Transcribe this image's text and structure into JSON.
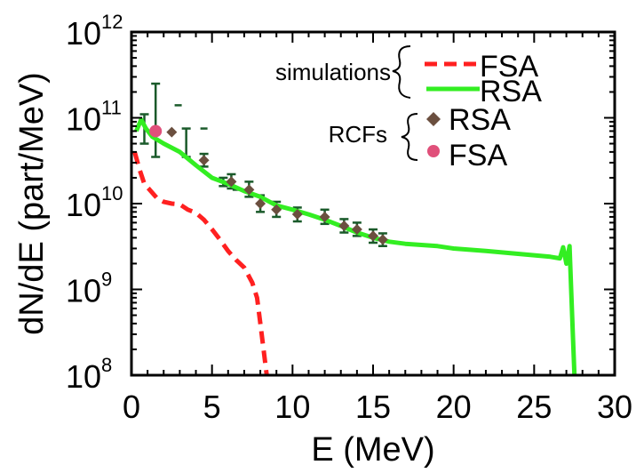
{
  "chart_data": {
    "type": "line",
    "xlabel": "E (MeV)",
    "ylabel": "dN/dE (part/MeV)",
    "xlim": [
      0,
      30
    ],
    "ylim_log10": [
      8,
      12
    ],
    "y_scale": "log",
    "grid": false,
    "x_ticks": [
      "0",
      "5",
      "10",
      "15",
      "20",
      "25",
      "30"
    ],
    "y_ticks": [
      {
        "base": "10",
        "exp": "8"
      },
      {
        "base": "10",
        "exp": "9"
      },
      {
        "base": "10",
        "exp": "10"
      },
      {
        "base": "10",
        "exp": "11"
      },
      {
        "base": "10",
        "exp": "12"
      }
    ],
    "legend": {
      "placement": "top-right",
      "group_simulations": "simulations",
      "group_rcfs": "RCFs",
      "sim_fsa": "FSA",
      "sim_rsa": "RSA",
      "rcf_rsa": "RSA",
      "rcf_fsa": "FSA"
    },
    "colors": {
      "sim_fsa": "#ff2020",
      "sim_rsa": "#33ee22",
      "rcf_rsa": "#6b4f3f",
      "rcf_fsa": "#e0507a",
      "error_bar": "#1a5a2a"
    },
    "series": [
      {
        "id": "sim_fsa",
        "style": "dashed",
        "points": [
          [
            0.2,
            40000000000.0
          ],
          [
            0.5,
            25000000000.0
          ],
          [
            0.8,
            17000000000.0
          ],
          [
            1.2,
            14000000000.0
          ],
          [
            1.6,
            11500000000.0
          ],
          [
            2.0,
            10500000000.0
          ],
          [
            2.5,
            10000000000.0
          ],
          [
            3.0,
            9800000000.0
          ],
          [
            3.5,
            8500000000.0
          ],
          [
            4.0,
            7800000000.0
          ],
          [
            4.5,
            6500000000.0
          ],
          [
            5.0,
            5000000000.0
          ],
          [
            5.5,
            3800000000.0
          ],
          [
            6.0,
            2800000000.0
          ],
          [
            6.5,
            2200000000.0
          ],
          [
            7.0,
            1800000000.0
          ],
          [
            7.5,
            1200000000.0
          ],
          [
            7.8,
            800000000.0
          ],
          [
            8.0,
            400000000.0
          ],
          [
            8.2,
            200000000.0
          ],
          [
            8.4,
            100000000.0
          ]
        ]
      },
      {
        "id": "sim_rsa",
        "style": "solid",
        "points": [
          [
            0.3,
            70000000000.0
          ],
          [
            0.6,
            95000000000.0
          ],
          [
            0.9,
            75000000000.0
          ],
          [
            1.3,
            60000000000.0
          ],
          [
            2.0,
            50000000000.0
          ],
          [
            3.0,
            40000000000.0
          ],
          [
            4.0,
            28000000000.0
          ],
          [
            5.0,
            20000000000.0
          ],
          [
            6.0,
            17000000000.0
          ],
          [
            7.0,
            14000000000.0
          ],
          [
            8.0,
            12000000000.0
          ],
          [
            9.0,
            9500000000.0
          ],
          [
            10.0,
            8500000000.0
          ],
          [
            11.0,
            7500000000.0
          ],
          [
            12.0,
            6500000000.0
          ],
          [
            13.0,
            5500000000.0
          ],
          [
            14.0,
            4600000000.0
          ],
          [
            15.0,
            4000000000.0
          ],
          [
            16.0,
            3600000000.0
          ],
          [
            17.0,
            3400000000.0
          ],
          [
            18.0,
            3300000000.0
          ],
          [
            19.0,
            3200000000.0
          ],
          [
            20.0,
            3000000000.0
          ],
          [
            21.0,
            2900000000.0
          ],
          [
            22.0,
            2800000000.0
          ],
          [
            23.0,
            2700000000.0
          ],
          [
            24.0,
            2600000000.0
          ],
          [
            25.0,
            2500000000.0
          ],
          [
            26.0,
            2400000000.0
          ],
          [
            26.6,
            2300000000.0
          ],
          [
            26.8,
            3100000000.0
          ],
          [
            27.0,
            2000000000.0
          ],
          [
            27.2,
            3200000000.0
          ],
          [
            27.3,
            1000000000.0
          ],
          [
            27.4,
            300000000.0
          ],
          [
            27.5,
            100000000.0
          ]
        ]
      }
    ],
    "rcf_rsa_points": [
      {
        "x": 2.5,
        "y": 68000000000.0
      },
      {
        "x": 4.5,
        "y": 32000000000.0,
        "err_lo": 27000000000.0,
        "err_hi": 38000000000.0
      },
      {
        "x": 6.2,
        "y": 18000000000.0,
        "err_lo": 15000000000.0,
        "err_hi": 22000000000.0
      },
      {
        "x": 7.3,
        "y": 14500000000.0,
        "err_lo": 12000000000.0,
        "err_hi": 18000000000.0
      },
      {
        "x": 8.0,
        "y": 10000000000.0,
        "err_lo": 8000000000.0,
        "err_hi": 12500000000.0
      },
      {
        "x": 9.0,
        "y": 8500000000.0,
        "err_lo": 7000000000.0,
        "err_hi": 10500000000.0
      },
      {
        "x": 10.3,
        "y": 7500000000.0,
        "err_lo": 6200000000.0,
        "err_hi": 9000000000.0
      },
      {
        "x": 12.0,
        "y": 7000000000.0,
        "err_lo": 5800000000.0,
        "err_hi": 8500000000.0
      },
      {
        "x": 13.2,
        "y": 5500000000.0,
        "err_lo": 4600000000.0,
        "err_hi": 6600000000.0
      },
      {
        "x": 14.0,
        "y": 5000000000.0,
        "err_lo": 4200000000.0,
        "err_hi": 6000000000.0
      },
      {
        "x": 15.0,
        "y": 4200000000.0,
        "err_lo": 3500000000.0,
        "err_hi": 5000000000.0
      },
      {
        "x": 15.6,
        "y": 3800000000.0,
        "err_lo": 3200000000.0,
        "err_hi": 4500000000.0
      }
    ],
    "rcf_fsa_points": [
      {
        "x": 1.5,
        "y": 70000000000.0,
        "err_lo": 35000000000.0,
        "err_hi": 250000000000.0
      }
    ],
    "extra_error_bars": [
      {
        "x": 0.8,
        "lo": 50000000000.0,
        "hi": 110000000000.0
      },
      {
        "x": 3.4,
        "lo": 35000000000.0,
        "hi": 75000000000.0
      },
      {
        "x": 5.7,
        "lo": 16000000000.0,
        "hi": 20000000000.0
      }
    ],
    "extra_dashes": [
      {
        "x": 2.9,
        "y": 140000000000.0
      },
      {
        "x": 4.5,
        "y": 75000000000.0
      },
      {
        "x": 6.5,
        "y": 14500000000.0
      }
    ]
  }
}
